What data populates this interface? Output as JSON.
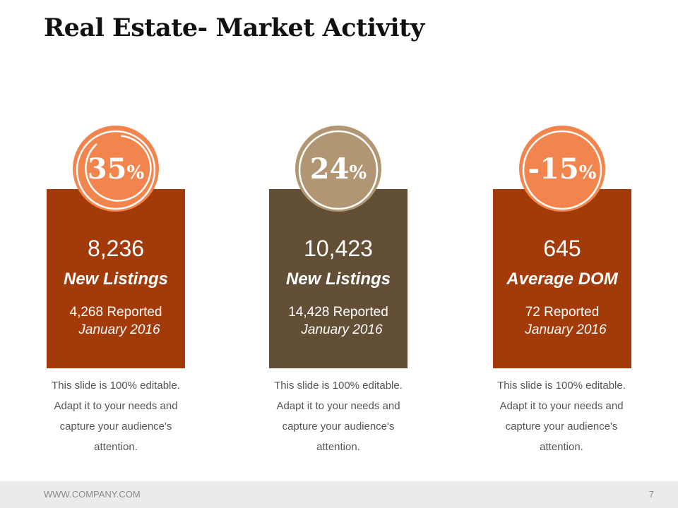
{
  "slide": {
    "title": "Real Estate- Market Activity"
  },
  "colors": {
    "card_rust": "#a33a0a",
    "card_brown": "#624f36",
    "badge_orange": "#f2854d",
    "badge_tan": "#b09672"
  },
  "cards": [
    {
      "percent_value": "35",
      "percent_sign": "%",
      "number": "8,236",
      "label": "New Listings",
      "reported": "4,268 Reported",
      "date": "January 2016",
      "description": [
        "This slide is 100% editable.",
        "Adapt it to your needs and",
        "capture your audience's",
        "attention."
      ]
    },
    {
      "percent_value": "24",
      "percent_sign": "%",
      "number": "10,423",
      "label": "New Listings",
      "reported": "14,428 Reported",
      "date": "January 2016",
      "description": [
        "This slide is 100% editable.",
        "Adapt it to your needs and",
        "capture your audience's",
        "attention."
      ]
    },
    {
      "percent_value": "-15",
      "percent_sign": "%",
      "number": "645",
      "label": "Average DOM",
      "reported": "72 Reported",
      "date": "January 2016",
      "description": [
        "This slide is 100% editable.",
        "Adapt it to your needs and",
        "capture your audience's",
        "attention."
      ]
    }
  ],
  "footer": {
    "url": "WWW.COMPANY.COM",
    "page_number": "7"
  }
}
